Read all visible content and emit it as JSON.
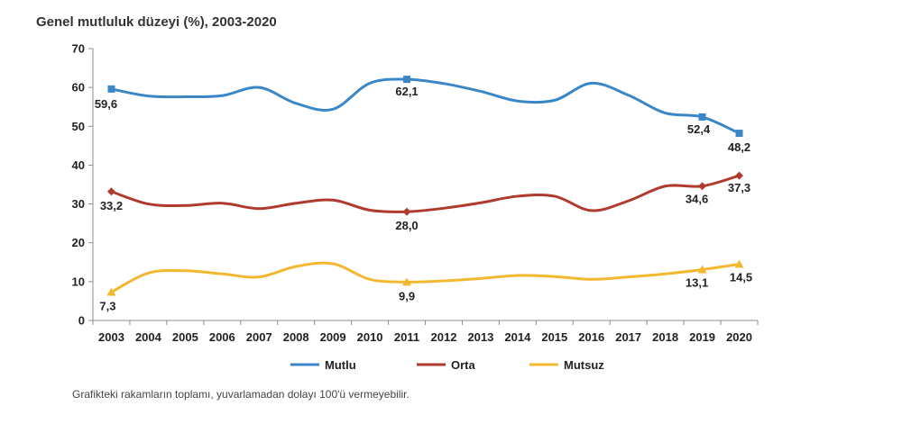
{
  "chart_data": {
    "type": "line",
    "title": "Genel mutluluk düzeyi (%), 2003-2020",
    "x": [
      "2003",
      "2004",
      "2005",
      "2006",
      "2007",
      "2008",
      "2009",
      "2010",
      "2011",
      "2012",
      "2013",
      "2014",
      "2015",
      "2016",
      "2017",
      "2018",
      "2019",
      "2020"
    ],
    "ylim": [
      0,
      70
    ],
    "yticks": [
      "0",
      "10",
      "20",
      "30",
      "40",
      "50",
      "60",
      "70"
    ],
    "grid": false,
    "legend_position": "bottom",
    "series": [
      {
        "name": "Mutlu",
        "color": "#3a87c8",
        "marker": "square",
        "values": [
          59.6,
          57.8,
          57.6,
          57.9,
          60.0,
          55.9,
          54.4,
          61.1,
          62.1,
          61.0,
          59.0,
          56.5,
          56.7,
          61.1,
          58.0,
          53.4,
          52.4,
          48.2
        ],
        "labels": [
          {
            "index": 0,
            "text": "59,6"
          },
          {
            "index": 8,
            "text": "62,1"
          },
          {
            "index": 16,
            "text": "52,4"
          },
          {
            "index": 17,
            "text": "48,2"
          }
        ]
      },
      {
        "name": "Orta",
        "color": "#b03a2e",
        "marker": "diamond",
        "values": [
          33.2,
          30.0,
          29.6,
          30.2,
          28.8,
          30.2,
          31.0,
          28.4,
          28.0,
          28.9,
          30.3,
          32.0,
          32.0,
          28.3,
          30.8,
          34.6,
          34.6,
          37.3
        ],
        "labels": [
          {
            "index": 0,
            "text": "33,2"
          },
          {
            "index": 8,
            "text": "28,0"
          },
          {
            "index": 16,
            "text": "34,6"
          },
          {
            "index": 17,
            "text": "37,3"
          }
        ]
      },
      {
        "name": "Mutsuz",
        "color": "#f2b830",
        "marker": "triangle",
        "values": [
          7.3,
          12.2,
          12.8,
          12.0,
          11.2,
          13.9,
          14.6,
          10.6,
          9.9,
          10.2,
          10.8,
          11.6,
          11.3,
          10.6,
          11.2,
          12.0,
          13.1,
          14.5
        ],
        "labels": [
          {
            "index": 0,
            "text": "7,3"
          },
          {
            "index": 8,
            "text": "9,9"
          },
          {
            "index": 16,
            "text": "13,1"
          },
          {
            "index": 17,
            "text": "14,5"
          }
        ]
      }
    ],
    "note": "Grafikteki rakamların toplamı, yuvarlamadan dolayı 100'ü vermeyebilir."
  }
}
